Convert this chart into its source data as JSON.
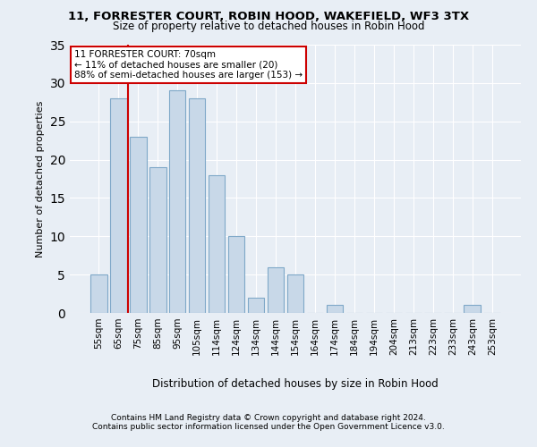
{
  "title1": "11, FORRESTER COURT, ROBIN HOOD, WAKEFIELD, WF3 3TX",
  "title2": "Size of property relative to detached houses in Robin Hood",
  "xlabel": "Distribution of detached houses by size in Robin Hood",
  "ylabel": "Number of detached properties",
  "categories": [
    "55sqm",
    "65sqm",
    "75sqm",
    "85sqm",
    "95sqm",
    "105sqm",
    "114sqm",
    "124sqm",
    "134sqm",
    "144sqm",
    "154sqm",
    "164sqm",
    "174sqm",
    "184sqm",
    "194sqm",
    "204sqm",
    "213sqm",
    "223sqm",
    "233sqm",
    "243sqm",
    "253sqm"
  ],
  "values": [
    5,
    28,
    23,
    19,
    29,
    28,
    18,
    10,
    2,
    6,
    5,
    0,
    1,
    0,
    0,
    0,
    0,
    0,
    0,
    1,
    0
  ],
  "bar_color": "#c8d8e8",
  "bar_edge_color": "#7fa8c8",
  "subject_line_color": "#cc0000",
  "annotation_line1": "11 FORRESTER COURT: 70sqm",
  "annotation_line2": "← 11% of detached houses are smaller (20)",
  "annotation_line3": "88% of semi-detached houses are larger (153) →",
  "annotation_box_color": "#ffffff",
  "annotation_box_edge": "#cc0000",
  "ylim": [
    0,
    35
  ],
  "yticks": [
    0,
    5,
    10,
    15,
    20,
    25,
    30,
    35
  ],
  "footer1": "Contains HM Land Registry data © Crown copyright and database right 2024.",
  "footer2": "Contains public sector information licensed under the Open Government Licence v3.0.",
  "bg_color": "#e8eef5",
  "grid_color": "#ffffff"
}
